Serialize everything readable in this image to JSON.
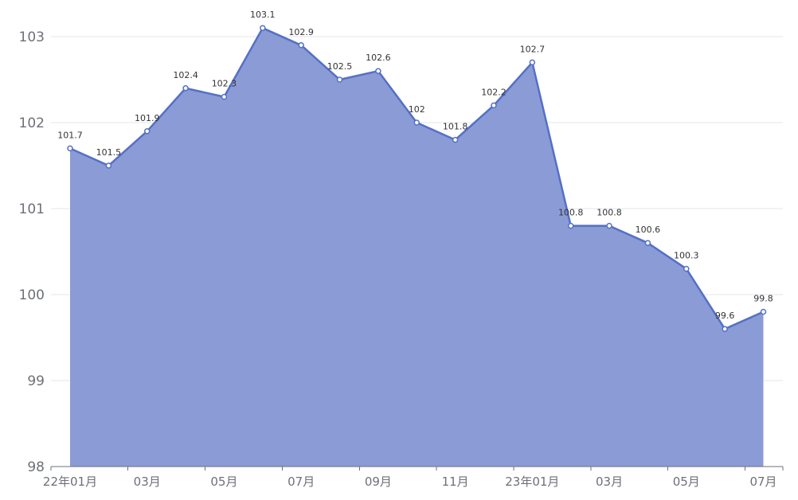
{
  "chart_data": {
    "type": "area",
    "title": "",
    "xlabel": "",
    "ylabel": "",
    "ylim": [
      98,
      103
    ],
    "yticks": [
      "98",
      "99",
      "100",
      "101",
      "102",
      "103"
    ],
    "grid": true,
    "colors": {
      "line": "#5470c6",
      "fill": "#8a9bd6",
      "grid": "#e0e6f1",
      "axis": "#6e7079"
    },
    "x": [
      "22年01月",
      "22年02月",
      "22年03月",
      "22年04月",
      "22年05月",
      "22年06月",
      "22年07月",
      "22年08月",
      "22年09月",
      "22年10月",
      "22年11月",
      "22年12月",
      "23年01月",
      "23年02月",
      "23年03月",
      "23年04月",
      "23年05月",
      "23年06月",
      "23年07月"
    ],
    "xtick_labels": [
      {
        "index": 0,
        "label": "22年01月"
      },
      {
        "index": 2,
        "label": "03月"
      },
      {
        "index": 4,
        "label": "05月"
      },
      {
        "index": 6,
        "label": "07月"
      },
      {
        "index": 8,
        "label": "09月"
      },
      {
        "index": 10,
        "label": "11月"
      },
      {
        "index": 12,
        "label": "23年01月"
      },
      {
        "index": 14,
        "label": "03月"
      },
      {
        "index": 16,
        "label": "05月"
      },
      {
        "index": 18,
        "label": "07月"
      }
    ],
    "series": [
      {
        "values": [
          101.7,
          101.5,
          101.9,
          102.4,
          102.3,
          103.1,
          102.9,
          102.5,
          102.6,
          102.0,
          101.8,
          102.2,
          102.7,
          100.8,
          100.8,
          100.6,
          100.3,
          99.6,
          99.8
        ],
        "labels": [
          "101.7",
          "101.5",
          "101.9",
          "102.4",
          "102.3",
          "103.1",
          "102.9",
          "102.5",
          "102.6",
          "102",
          "101.8",
          "102.2",
          "102.7",
          "100.8",
          "100.8",
          "100.6",
          "100.3",
          "99.6",
          "99.8"
        ]
      }
    ]
  }
}
